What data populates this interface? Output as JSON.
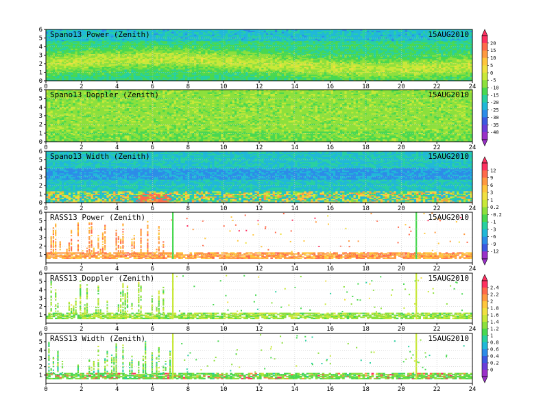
{
  "chart_data": [
    {
      "type": "heatmap",
      "title": "Spano13 Power (Zenith)",
      "date": "15AUG2010",
      "x_ticks": [
        0,
        2,
        4,
        6,
        8,
        10,
        12,
        14,
        16,
        18,
        20,
        22,
        24
      ],
      "y_ticks": [
        0,
        1,
        2,
        3,
        4,
        5,
        6
      ],
      "xlim": [
        0,
        24
      ],
      "ylim": [
        0,
        6
      ],
      "grid": true,
      "colorbar_group": 0
    },
    {
      "type": "heatmap",
      "title": "Spano13 Doppler (Zenith)",
      "date": "15AUG2010",
      "x_ticks": [
        0,
        2,
        4,
        6,
        8,
        10,
        12,
        14,
        16,
        18,
        20,
        22,
        24
      ],
      "y_ticks": [
        0,
        1,
        2,
        3,
        4,
        5,
        6
      ],
      "xlim": [
        0,
        24
      ],
      "ylim": [
        0,
        6
      ],
      "grid": true,
      "colorbar_group": 0
    },
    {
      "type": "heatmap",
      "title": "Spano13 Width (Zenith)",
      "date": "15AUG2010",
      "x_ticks": [
        0,
        2,
        4,
        6,
        8,
        10,
        12,
        14,
        16,
        18,
        20,
        22,
        24
      ],
      "y_ticks": [
        0,
        1,
        2,
        3,
        4,
        5,
        6
      ],
      "xlim": [
        0,
        24
      ],
      "ylim": [
        0,
        6
      ],
      "grid": true,
      "colorbar_group": 1
    },
    {
      "type": "heatmap",
      "title": "RASS13 Power (Zenith)",
      "date": "15AUG2010",
      "x_ticks": [
        0,
        2,
        4,
        6,
        8,
        10,
        12,
        14,
        16,
        18,
        20,
        22,
        24
      ],
      "y_ticks": [
        1,
        2,
        3,
        4,
        5,
        6
      ],
      "xlim": [
        0,
        24
      ],
      "ylim": [
        0,
        6
      ],
      "grid": true,
      "colorbar_group": 1
    },
    {
      "type": "heatmap",
      "title": "RASS13 Doppler (Zenith)",
      "date": "15AUG2010",
      "x_ticks": [
        0,
        2,
        4,
        6,
        8,
        10,
        12,
        14,
        16,
        18,
        20,
        22,
        24
      ],
      "y_ticks": [
        1,
        2,
        3,
        4,
        5,
        6
      ],
      "xlim": [
        0,
        24
      ],
      "ylim": [
        0,
        6
      ],
      "grid": true,
      "colorbar_group": 2
    },
    {
      "type": "heatmap",
      "title": "RASS13 Width (Zenith)",
      "date": "15AUG2010",
      "x_ticks": [
        0,
        2,
        4,
        6,
        8,
        10,
        12,
        14,
        16,
        18,
        20,
        22,
        24
      ],
      "y_ticks": [
        1,
        2,
        3,
        4,
        5,
        6
      ],
      "xlim": [
        0,
        24
      ],
      "ylim": [
        0,
        6
      ],
      "grid": true,
      "colorbar_group": 2
    }
  ],
  "colorbars": [
    {
      "ticks": [
        "20",
        "15",
        "10",
        "5",
        "0",
        "-5",
        "-10",
        "-15",
        "-20",
        "-25",
        "-30",
        "-35",
        "-40"
      ],
      "colors": [
        "#ff3060",
        "#ff6a4a",
        "#ff9a40",
        "#ffc63c",
        "#f0e040",
        "#c8e838",
        "#8ce03c",
        "#48d850",
        "#28d0a0",
        "#20b8d8",
        "#2c8ce8",
        "#3c58e0",
        "#6a3cd8",
        "#9a30c8"
      ]
    },
    {
      "ticks": [
        "12",
        "9",
        "6",
        "3",
        "1",
        "0.2",
        "-0.2",
        "-1",
        "-3",
        "-6",
        "-9",
        "-12"
      ],
      "colors": [
        "#ff3060",
        "#ff6a4a",
        "#ff9a40",
        "#ffc63c",
        "#f0e040",
        "#c8e838",
        "#8ce03c",
        "#48d850",
        "#28d0a0",
        "#20b8d8",
        "#2c8ce8",
        "#3c58e0",
        "#9a30c8"
      ]
    },
    {
      "ticks": [
        "2.4",
        "2.2",
        "2",
        "1.8",
        "1.6",
        "1.4",
        "1.2",
        "1",
        "0.8",
        "0.6",
        "0.4",
        "0.2",
        "0"
      ],
      "colors": [
        "#ff3060",
        "#ff6a4a",
        "#ff9a40",
        "#ffc63c",
        "#f0e040",
        "#c8e838",
        "#8ce03c",
        "#48d850",
        "#28d0a0",
        "#20b8d8",
        "#2c8ce8",
        "#3c58e0",
        "#6a3cd8",
        "#9a30c8"
      ]
    }
  ]
}
